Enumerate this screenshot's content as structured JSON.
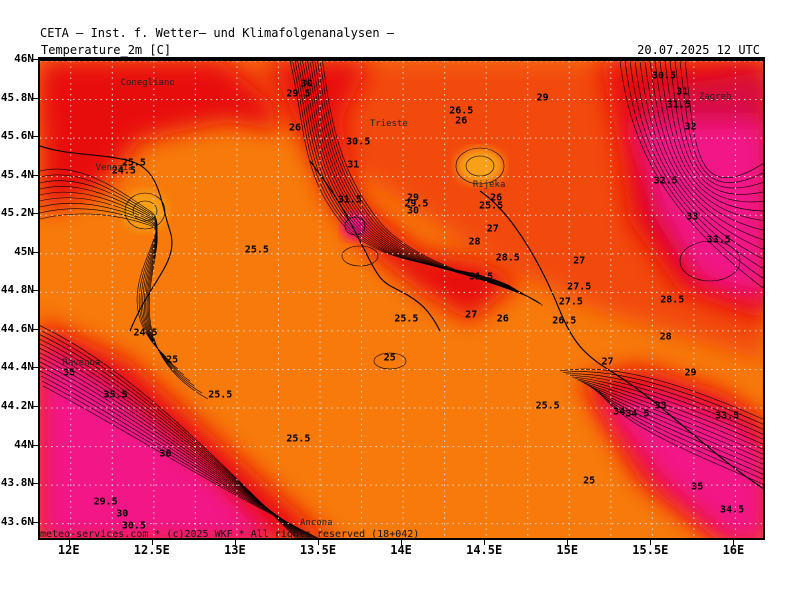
{
  "header": {
    "organization": "CETA — Inst. f. Wetter— und Klimafolgenanalysen —",
    "variable": "Temperature_2m [C]",
    "valid_time": "20.07.2025 12 UTC"
  },
  "footer": {
    "copyright": "meteo-services.com * (c)2025 WKF * All rights reserved (18+042)"
  },
  "colors": {
    "orange_25_28": "#f77a0a",
    "darkorange_28_30": "#f24a0a",
    "red_30_32": "#e81010",
    "crimson_32_33": "#d60f43",
    "magenta_33_plus": "#f21987",
    "light_pocket": "#f8a018",
    "grid": "#dddddd",
    "contour": "#000000"
  },
  "axes": {
    "lat_labels": [
      "46N",
      "45.8N",
      "45.6N",
      "45.4N",
      "45.2N",
      "45N",
      "44.8N",
      "44.6N",
      "44.4N",
      "44.2N",
      "44N",
      "43.8N",
      "43.6N"
    ],
    "lon_labels": [
      "12E",
      "12.5E",
      "13E",
      "13.5E",
      "14E",
      "14.5E",
      "15E",
      "15.5E",
      "16E"
    ]
  },
  "cities": [
    {
      "name": "Conegliano"
    },
    {
      "name": "Venezia"
    },
    {
      "name": "Trieste"
    },
    {
      "name": "Rijeka"
    },
    {
      "name": "Zagreb"
    },
    {
      "name": "Ravenna"
    },
    {
      "name": "Ancona"
    }
  ],
  "contour_labels": [
    {
      "text": "30",
      "lat": 45.88,
      "lon": 13.42
    },
    {
      "text": "29.5",
      "lat": 45.83,
      "lon": 13.37
    },
    {
      "text": "26",
      "lat": 45.65,
      "lon": 13.35
    },
    {
      "text": "26.5",
      "lat": 45.74,
      "lon": 14.35
    },
    {
      "text": "26",
      "lat": 45.69,
      "lon": 14.35
    },
    {
      "text": "29",
      "lat": 45.81,
      "lon": 14.84
    },
    {
      "text": "30.5",
      "lat": 45.92,
      "lon": 15.57
    },
    {
      "text": "31",
      "lat": 45.84,
      "lon": 15.68
    },
    {
      "text": "31.5",
      "lat": 45.77,
      "lon": 15.66
    },
    {
      "text": "32",
      "lat": 45.66,
      "lon": 15.73
    },
    {
      "text": "30.5",
      "lat": 45.58,
      "lon": 13.73
    },
    {
      "text": "31",
      "lat": 45.46,
      "lon": 13.7
    },
    {
      "text": "31.5",
      "lat": 45.28,
      "lon": 13.68
    },
    {
      "text": "29",
      "lat": 45.29,
      "lon": 14.06
    },
    {
      "text": "29.5",
      "lat": 45.26,
      "lon": 14.08
    },
    {
      "text": "30",
      "lat": 45.22,
      "lon": 14.06
    },
    {
      "text": "26",
      "lat": 45.29,
      "lon": 14.56
    },
    {
      "text": "25.5",
      "lat": 45.25,
      "lon": 14.53
    },
    {
      "text": "27",
      "lat": 45.13,
      "lon": 14.54
    },
    {
      "text": "28",
      "lat": 45.06,
      "lon": 14.43
    },
    {
      "text": "28.5",
      "lat": 44.98,
      "lon": 14.63
    },
    {
      "text": "31.5",
      "lat": 44.88,
      "lon": 14.47
    },
    {
      "text": "27",
      "lat": 44.68,
      "lon": 14.41
    },
    {
      "text": "26",
      "lat": 44.66,
      "lon": 14.6
    },
    {
      "text": "26.5",
      "lat": 44.65,
      "lon": 14.97
    },
    {
      "text": "27.5",
      "lat": 44.75,
      "lon": 15.01
    },
    {
      "text": "27.5",
      "lat": 44.83,
      "lon": 15.06
    },
    {
      "text": "27",
      "lat": 44.96,
      "lon": 15.06
    },
    {
      "text": "28",
      "lat": 44.57,
      "lon": 15.58
    },
    {
      "text": "28.5",
      "lat": 44.76,
      "lon": 15.62
    },
    {
      "text": "32.5",
      "lat": 45.38,
      "lon": 15.58
    },
    {
      "text": "33",
      "lat": 45.19,
      "lon": 15.74
    },
    {
      "text": "33.5",
      "lat": 45.07,
      "lon": 15.9
    },
    {
      "text": "25.5",
      "lat": 45.47,
      "lon": 12.38
    },
    {
      "text": "24.5",
      "lat": 45.43,
      "lon": 12.32
    },
    {
      "text": "25.5",
      "lat": 45.02,
      "lon": 13.12
    },
    {
      "text": "25.5",
      "lat": 44.66,
      "lon": 14.02
    },
    {
      "text": "25",
      "lat": 44.46,
      "lon": 13.92
    },
    {
      "text": "24.5",
      "lat": 44.59,
      "lon": 12.45
    },
    {
      "text": "25",
      "lat": 44.45,
      "lon": 12.61
    },
    {
      "text": "25.5",
      "lat": 44.27,
      "lon": 12.9
    },
    {
      "text": "35",
      "lat": 44.38,
      "lon": 11.99
    },
    {
      "text": "35.5",
      "lat": 44.27,
      "lon": 12.27
    },
    {
      "text": "36",
      "lat": 43.96,
      "lon": 12.57
    },
    {
      "text": "25.5",
      "lat": 44.04,
      "lon": 13.37
    },
    {
      "text": "25.5",
      "lat": 44.21,
      "lon": 14.87
    },
    {
      "text": "25",
      "lat": 43.82,
      "lon": 15.12
    },
    {
      "text": "27",
      "lat": 44.44,
      "lon": 15.23
    },
    {
      "text": "34",
      "lat": 44.18,
      "lon": 15.3
    },
    {
      "text": "34.5",
      "lat": 44.17,
      "lon": 15.41
    },
    {
      "text": "33",
      "lat": 44.21,
      "lon": 15.55
    },
    {
      "text": "33.5",
      "lat": 44.16,
      "lon": 15.95
    },
    {
      "text": "29",
      "lat": 44.38,
      "lon": 15.73
    },
    {
      "text": "35",
      "lat": 43.79,
      "lon": 15.77
    },
    {
      "text": "34.5",
      "lat": 43.67,
      "lon": 15.98
    },
    {
      "text": "29.5",
      "lat": 43.71,
      "lon": 12.21
    },
    {
      "text": "30",
      "lat": 43.65,
      "lon": 12.31
    },
    {
      "text": "30.5",
      "lat": 43.59,
      "lon": 12.38
    }
  ]
}
